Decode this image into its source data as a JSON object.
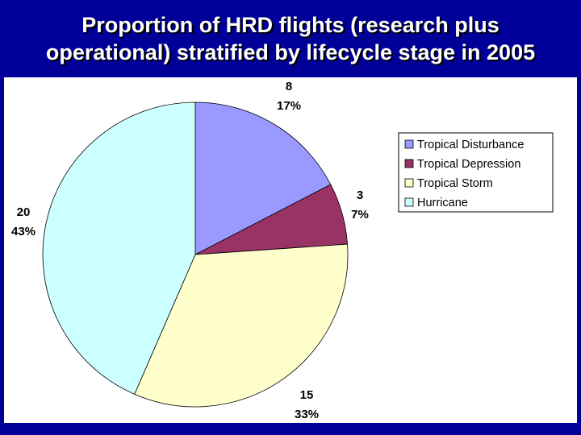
{
  "title_lines": [
    "Proportion of HRD flights (research plus",
    "operational) stratified by lifecycle stage in 2005"
  ],
  "chart_data": {
    "type": "pie",
    "title": "Proportion of HRD flights (research plus operational) stratified by lifecycle stage in 2005",
    "categories": [
      "Tropical Disturbance",
      "Tropical Depression",
      "Tropical Storm",
      "Hurricane"
    ],
    "values": [
      8,
      3,
      15,
      20
    ],
    "percent_labels": [
      "17%",
      "7%",
      "33%",
      "43%"
    ],
    "colors": [
      "#9999ff",
      "#993366",
      "#ffffcc",
      "#ccffff"
    ],
    "start": "12 o'clock, clockwise",
    "legend": "right"
  }
}
